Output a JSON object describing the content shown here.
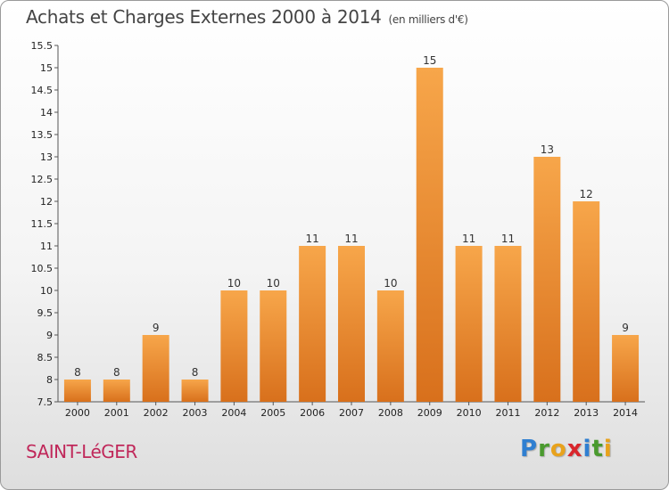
{
  "header": {
    "title": "Achats et Charges Externes 2000 à 2014",
    "unit": "(en milliers d'€)"
  },
  "footer": {
    "commune": "SAINT-LéGER",
    "logo_letters": [
      {
        "char": "P",
        "color": "#2f7fd1"
      },
      {
        "char": "r",
        "color": "#4a9a2e"
      },
      {
        "char": "o",
        "color": "#e8a21c"
      },
      {
        "char": "x",
        "color": "#d9262c"
      },
      {
        "char": "i",
        "color": "#2f7fd1"
      },
      {
        "char": "t",
        "color": "#4a9a2e"
      },
      {
        "char": "i",
        "color": "#e8a21c"
      }
    ]
  },
  "chart_data": {
    "type": "bar",
    "categories": [
      "2000",
      "2001",
      "2002",
      "2003",
      "2004",
      "2005",
      "2006",
      "2007",
      "2008",
      "2009",
      "2010",
      "2011",
      "2012",
      "2013",
      "2014"
    ],
    "values": [
      8,
      8,
      9,
      8,
      10,
      10,
      11,
      11,
      10,
      15,
      11,
      11,
      13,
      12,
      9
    ],
    "ylim": [
      7.5,
      15.5
    ],
    "yticks": [
      "7.5",
      "8",
      "8.5",
      "9",
      "9.5",
      "10",
      "10.5",
      "11",
      "11.5",
      "12",
      "12.5",
      "13",
      "13.5",
      "14",
      "14.5",
      "15",
      "15.5"
    ],
    "bar_color_top": "#f7a64a",
    "bar_color_bottom": "#d8701c",
    "grid": false
  }
}
